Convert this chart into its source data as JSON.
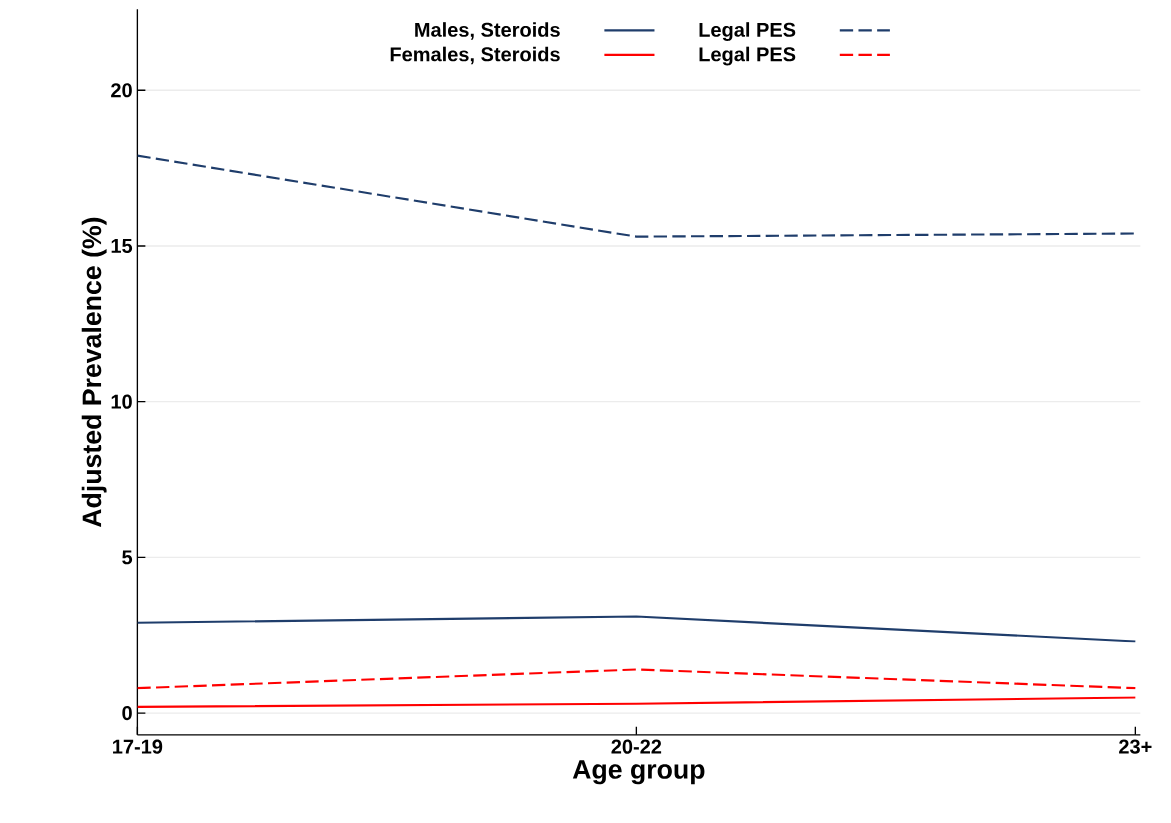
{
  "chart_data": {
    "type": "line",
    "xlabel": "Age group",
    "ylabel": "Adjusted Prevalence (%)",
    "categories": [
      "17-19",
      "20-22",
      "23+"
    ],
    "series": [
      {
        "name": "Males, Steroids",
        "color": "#1f3d6b",
        "line_style": "solid",
        "values": [
          2.9,
          3.1,
          2.3
        ]
      },
      {
        "name": "Legal PES",
        "color": "#1f3d6b",
        "line_style": "dashed",
        "values": [
          17.9,
          15.3,
          15.4
        ]
      },
      {
        "name": "Females, Steroids",
        "color": "#ff0000",
        "line_style": "solid",
        "values": [
          0.2,
          0.3,
          0.5
        ]
      },
      {
        "name": "Legal PES",
        "color": "#ff0000",
        "line_style": "dashed",
        "values": [
          0.8,
          1.4,
          0.8
        ]
      }
    ],
    "ylim": [
      -0.7,
      22.6
    ],
    "yticks": [
      0,
      5,
      10,
      15,
      20
    ],
    "grid": "y",
    "legend": "top",
    "marker": "none"
  }
}
